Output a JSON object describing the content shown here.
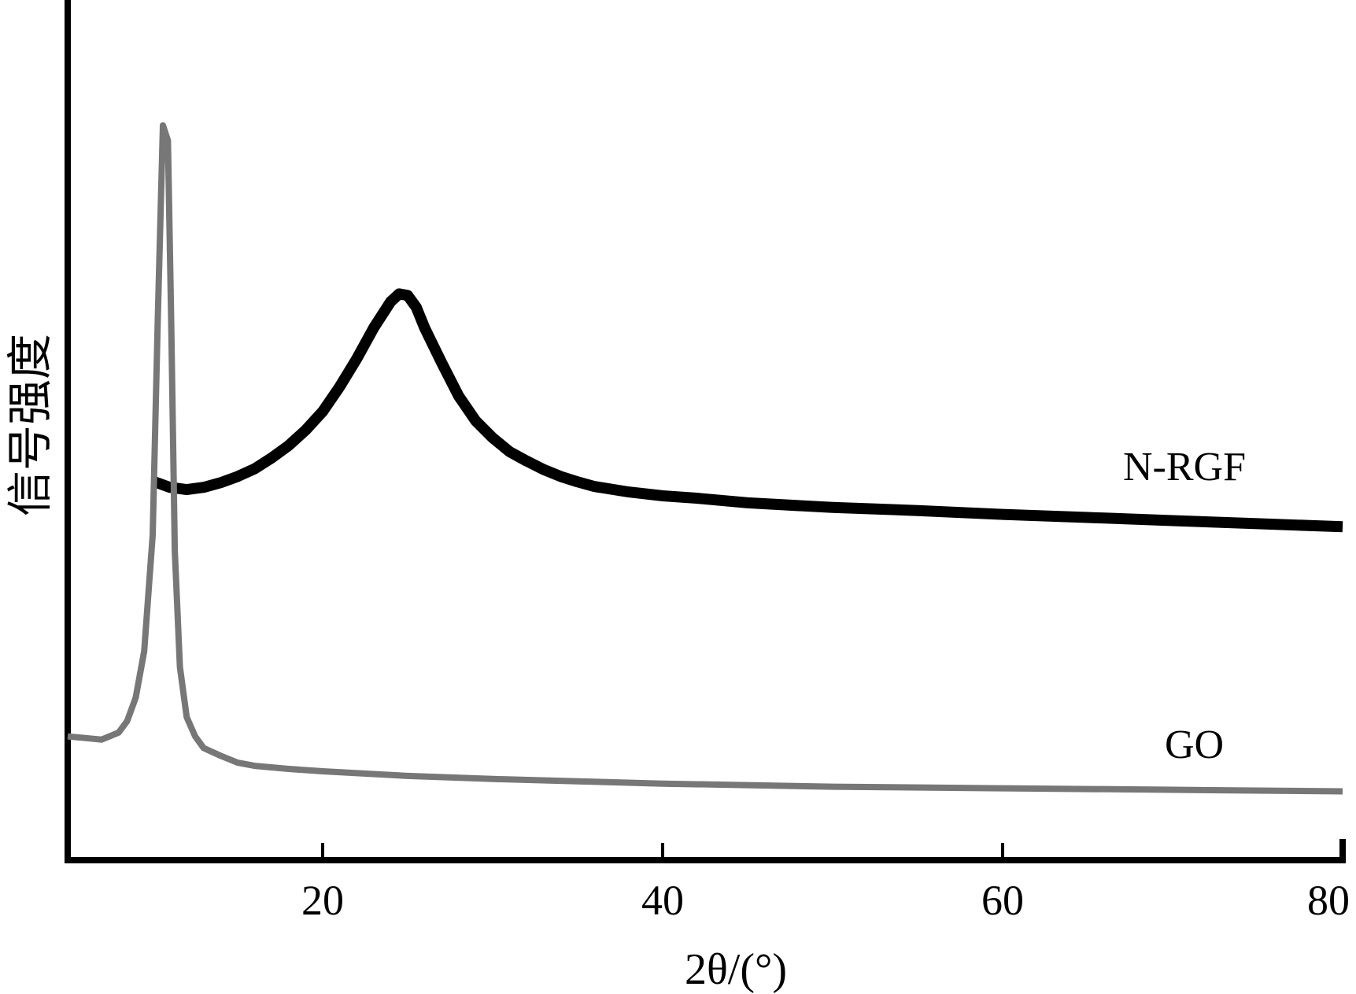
{
  "chart_data": {
    "type": "line",
    "title": "",
    "xlabel": "2θ/(°)",
    "ylabel": "信号强度",
    "xlim": [
      5,
      80
    ],
    "ylim": [
      0,
      100
    ],
    "xticks": [
      20,
      40,
      60,
      80
    ],
    "grid": false,
    "legend": "none",
    "series": [
      {
        "name": "N-RGF",
        "color": "#000000",
        "x": [
          10,
          11,
          12,
          13,
          14,
          15,
          16,
          17,
          18,
          19,
          20,
          21,
          22,
          23,
          24,
          24.5,
          25,
          25.5,
          26,
          27,
          28,
          29,
          30,
          31,
          32,
          33,
          34,
          35,
          36,
          38,
          40,
          42,
          45,
          50,
          55,
          60,
          65,
          70,
          75,
          80
        ],
        "y": [
          49.0,
          48.2,
          47.9,
          48.2,
          48.8,
          49.6,
          50.6,
          52.0,
          53.6,
          55.6,
          58.0,
          61.2,
          64.8,
          68.8,
          72.2,
          73.2,
          73.0,
          71.5,
          68.8,
          64.3,
          60.0,
          56.8,
          54.6,
          52.8,
          51.6,
          50.5,
          49.6,
          48.9,
          48.3,
          47.6,
          47.1,
          46.8,
          46.2,
          45.6,
          45.2,
          44.7,
          44.3,
          43.9,
          43.5,
          43.1
        ]
      },
      {
        "name": "GO",
        "color": "#777777",
        "x": [
          5,
          6,
          7,
          8,
          8.5,
          9,
          9.5,
          10,
          10.3,
          10.6,
          10.9,
          11.1,
          11.3,
          11.6,
          12,
          12.5,
          13,
          14,
          15,
          16,
          18,
          20,
          25,
          30,
          35,
          40,
          50,
          60,
          70,
          80
        ],
        "y": [
          16.0,
          15.8,
          15.6,
          16.5,
          18.0,
          21.0,
          27.0,
          42.0,
          70.0,
          95.0,
          93.0,
          68.0,
          40.0,
          25.0,
          18.5,
          16.0,
          14.5,
          13.5,
          12.6,
          12.2,
          11.8,
          11.5,
          10.9,
          10.5,
          10.2,
          9.9,
          9.5,
          9.3,
          9.1,
          8.9
        ]
      }
    ]
  }
}
